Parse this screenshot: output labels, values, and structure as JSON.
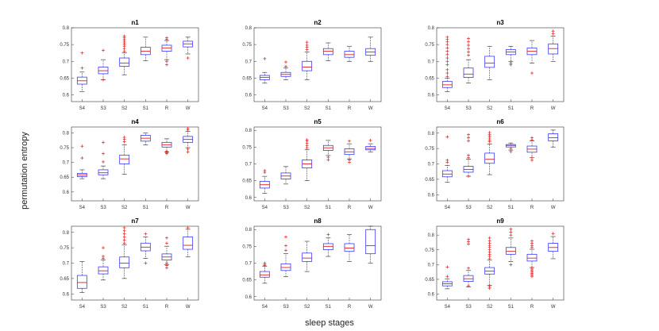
{
  "figure": {
    "ylabel": "permutation entropy",
    "xlabel": "sleep stages"
  },
  "chart_data": {
    "type": "boxplot",
    "categories": [
      "S4",
      "S3",
      "S2",
      "S1",
      "R",
      "W"
    ],
    "yticks": [
      0.6,
      0.65,
      0.7,
      0.75,
      0.8
    ],
    "colors": {
      "box": "#3a3aff",
      "median": "#e02020",
      "outlier": "#e02020",
      "whisker": "#222222"
    },
    "panels": [
      {
        "title": "n1",
        "ylim": [
          0.58,
          0.8
        ],
        "boxes": [
          {
            "wlo": 0.61,
            "q1": 0.632,
            "med": 0.642,
            "q3": 0.653,
            "whi": 0.668,
            "outliers": [
              0.68,
              0.725
            ]
          },
          {
            "wlo": 0.645,
            "q1": 0.663,
            "med": 0.672,
            "q3": 0.683,
            "whi": 0.705,
            "outliers": [
              0.645,
              0.733
            ]
          },
          {
            "wlo": 0.66,
            "q1": 0.685,
            "med": 0.695,
            "q3": 0.71,
            "whi": 0.725,
            "outliers": [
              0.73,
              0.738,
              0.745,
              0.75,
              0.755,
              0.76,
              0.765,
              0.77,
              0.775
            ]
          },
          {
            "wlo": 0.702,
            "q1": 0.72,
            "med": 0.73,
            "q3": 0.742,
            "whi": 0.772,
            "outliers": []
          },
          {
            "wlo": 0.705,
            "q1": 0.73,
            "med": 0.74,
            "q3": 0.748,
            "whi": 0.762,
            "outliers": [
              0.69,
              0.7,
              0.765,
              0.77
            ]
          },
          {
            "wlo": 0.722,
            "q1": 0.743,
            "med": 0.752,
            "q3": 0.76,
            "whi": 0.772,
            "outliers": [
              0.71
            ]
          }
        ]
      },
      {
        "title": "n2",
        "ylim": [
          0.58,
          0.8
        ],
        "boxes": [
          {
            "wlo": 0.635,
            "q1": 0.645,
            "med": 0.652,
            "q3": 0.658,
            "whi": 0.667,
            "outliers": [
              0.708
            ]
          },
          {
            "wlo": 0.645,
            "q1": 0.655,
            "med": 0.661,
            "q3": 0.667,
            "whi": 0.68,
            "outliers": [
              0.685,
              0.698
            ]
          },
          {
            "wlo": 0.645,
            "q1": 0.672,
            "med": 0.683,
            "q3": 0.7,
            "whi": 0.728,
            "outliers": [
              0.735,
              0.742,
              0.748,
              0.757
            ]
          },
          {
            "wlo": 0.702,
            "q1": 0.72,
            "med": 0.73,
            "q3": 0.738,
            "whi": 0.755,
            "outliers": []
          },
          {
            "wlo": 0.7,
            "q1": 0.712,
            "med": 0.72,
            "q3": 0.73,
            "whi": 0.745,
            "outliers": []
          },
          {
            "wlo": 0.7,
            "q1": 0.718,
            "med": 0.728,
            "q3": 0.738,
            "whi": 0.772,
            "outliers": []
          }
        ]
      },
      {
        "title": "n3",
        "ylim": [
          0.58,
          0.8
        ],
        "boxes": [
          {
            "wlo": 0.61,
            "q1": 0.622,
            "med": 0.63,
            "q3": 0.64,
            "whi": 0.65,
            "outliers": [
              0.655,
              0.665,
              0.675,
              0.69,
              0.7,
              0.71,
              0.72,
              0.73,
              0.74,
              0.75,
              0.758,
              0.765,
              0.772
            ]
          },
          {
            "wlo": 0.635,
            "q1": 0.652,
            "med": 0.662,
            "q3": 0.68,
            "whi": 0.705,
            "outliers": [
              0.718,
              0.728,
              0.738,
              0.748,
              0.758,
              0.768
            ]
          },
          {
            "wlo": 0.645,
            "q1": 0.682,
            "med": 0.695,
            "q3": 0.715,
            "whi": 0.745,
            "outliers": []
          },
          {
            "wlo": 0.7,
            "q1": 0.72,
            "med": 0.728,
            "q3": 0.735,
            "whi": 0.745,
            "outliers": [
              0.69,
              0.695,
              0.7
            ]
          },
          {
            "wlo": 0.695,
            "q1": 0.72,
            "med": 0.73,
            "q3": 0.74,
            "whi": 0.762,
            "outliers": [
              0.665
            ]
          },
          {
            "wlo": 0.7,
            "q1": 0.722,
            "med": 0.738,
            "q3": 0.752,
            "whi": 0.775,
            "outliers": [
              0.782,
              0.79
            ]
          }
        ]
      },
      {
        "title": "n4",
        "ylim": [
          0.57,
          0.82
        ],
        "boxes": [
          {
            "wlo": 0.645,
            "q1": 0.652,
            "med": 0.658,
            "q3": 0.663,
            "whi": 0.675,
            "outliers": [
              0.715,
              0.755
            ]
          },
          {
            "wlo": 0.645,
            "q1": 0.658,
            "med": 0.665,
            "q3": 0.675,
            "whi": 0.688,
            "outliers": [
              0.702,
              0.73,
              0.768
            ]
          },
          {
            "wlo": 0.66,
            "q1": 0.695,
            "med": 0.712,
            "q3": 0.725,
            "whi": 0.76,
            "outliers": [
              0.77,
              0.778,
              0.785
            ]
          },
          {
            "wlo": 0.76,
            "q1": 0.772,
            "med": 0.782,
            "q3": 0.792,
            "whi": 0.8,
            "outliers": []
          },
          {
            "wlo": 0.735,
            "q1": 0.752,
            "med": 0.76,
            "q3": 0.768,
            "whi": 0.78,
            "outliers": [
              0.73,
              0.732,
              0.735,
              0.738
            ]
          },
          {
            "wlo": 0.75,
            "q1": 0.768,
            "med": 0.778,
            "q3": 0.788,
            "whi": 0.805,
            "outliers": [
              0.735,
              0.745,
              0.81,
              0.815
            ]
          }
        ]
      },
      {
        "title": "n5",
        "ylim": [
          0.59,
          0.81
        ],
        "boxes": [
          {
            "wlo": 0.612,
            "q1": 0.628,
            "med": 0.638,
            "q3": 0.648,
            "whi": 0.663,
            "outliers": [
              0.675,
              0.68
            ]
          },
          {
            "wlo": 0.64,
            "q1": 0.655,
            "med": 0.664,
            "q3": 0.673,
            "whi": 0.692,
            "outliers": []
          },
          {
            "wlo": 0.65,
            "q1": 0.688,
            "med": 0.7,
            "q3": 0.712,
            "whi": 0.742,
            "outliers": [
              0.748,
              0.755,
              0.762,
              0.768,
              0.772
            ]
          },
          {
            "wlo": 0.725,
            "q1": 0.74,
            "med": 0.748,
            "q3": 0.755,
            "whi": 0.77,
            "outliers": [
              0.712,
              0.72
            ]
          },
          {
            "wlo": 0.715,
            "q1": 0.728,
            "med": 0.736,
            "q3": 0.745,
            "whi": 0.76,
            "outliers": [
              0.705,
              0.712,
              0.768
            ]
          },
          {
            "wlo": 0.735,
            "q1": 0.742,
            "med": 0.746,
            "q3": 0.752,
            "whi": 0.76,
            "outliers": [
              0.77
            ]
          }
        ]
      },
      {
        "title": "n6",
        "ylim": [
          0.58,
          0.82
        ],
        "boxes": [
          {
            "wlo": 0.64,
            "q1": 0.658,
            "med": 0.667,
            "q3": 0.678,
            "whi": 0.695,
            "outliers": [
              0.705,
              0.712,
              0.788
            ]
          },
          {
            "wlo": 0.66,
            "q1": 0.673,
            "med": 0.682,
            "q3": 0.692,
            "whi": 0.715,
            "outliers": [
              0.66,
              0.72,
              0.728,
              0.775,
              0.785,
              0.795
            ]
          },
          {
            "wlo": 0.665,
            "q1": 0.702,
            "med": 0.715,
            "q3": 0.735,
            "whi": 0.765,
            "outliers": [
              0.772,
              0.778,
              0.784,
              0.79,
              0.796,
              0.802
            ]
          },
          {
            "wlo": 0.745,
            "q1": 0.755,
            "med": 0.76,
            "q3": 0.763,
            "whi": 0.768,
            "outliers": [
              0.74,
              0.75
            ]
          },
          {
            "wlo": 0.72,
            "q1": 0.738,
            "med": 0.748,
            "q3": 0.758,
            "whi": 0.775,
            "outliers": [
              0.712,
              0.72,
              0.778,
              0.785
            ]
          },
          {
            "wlo": 0.755,
            "q1": 0.775,
            "med": 0.785,
            "q3": 0.798,
            "whi": 0.81,
            "outliers": []
          }
        ]
      },
      {
        "title": "n7",
        "ylim": [
          0.58,
          0.82
        ],
        "boxes": [
          {
            "wlo": 0.605,
            "q1": 0.618,
            "med": 0.637,
            "q3": 0.66,
            "whi": 0.705,
            "outliers": []
          },
          {
            "wlo": 0.645,
            "q1": 0.665,
            "med": 0.675,
            "q3": 0.688,
            "whi": 0.71,
            "outliers": [
              0.715,
              0.722,
              0.75
            ]
          },
          {
            "wlo": 0.65,
            "q1": 0.685,
            "med": 0.7,
            "q3": 0.72,
            "whi": 0.76,
            "outliers": [
              0.765,
              0.775,
              0.785,
              0.795,
              0.805,
              0.815
            ]
          },
          {
            "wlo": 0.715,
            "q1": 0.74,
            "med": 0.752,
            "q3": 0.765,
            "whi": 0.785,
            "outliers": [
              0.7,
              0.795
            ]
          },
          {
            "wlo": 0.695,
            "q1": 0.71,
            "med": 0.72,
            "q3": 0.73,
            "whi": 0.755,
            "outliers": [
              0.685,
              0.692,
              0.7,
              0.765,
              0.782
            ]
          },
          {
            "wlo": 0.72,
            "q1": 0.745,
            "med": 0.758,
            "q3": 0.785,
            "whi": 0.81,
            "outliers": [
              0.815
            ]
          }
        ]
      },
      {
        "title": "n8",
        "ylim": [
          0.59,
          0.81
        ],
        "boxes": [
          {
            "wlo": 0.64,
            "q1": 0.658,
            "med": 0.665,
            "q3": 0.675,
            "whi": 0.69,
            "outliers": [
              0.693,
              0.696,
              0.7
            ]
          },
          {
            "wlo": 0.66,
            "q1": 0.678,
            "med": 0.687,
            "q3": 0.698,
            "whi": 0.728,
            "outliers": [
              0.738,
              0.752,
              0.778
            ]
          },
          {
            "wlo": 0.675,
            "q1": 0.705,
            "med": 0.715,
            "q3": 0.73,
            "whi": 0.765,
            "outliers": []
          },
          {
            "wlo": 0.72,
            "q1": 0.74,
            "med": 0.75,
            "q3": 0.758,
            "whi": 0.775,
            "outliers": [
              0.785
            ]
          },
          {
            "wlo": 0.705,
            "q1": 0.735,
            "med": 0.745,
            "q3": 0.758,
            "whi": 0.785,
            "outliers": []
          },
          {
            "wlo": 0.7,
            "q1": 0.728,
            "med": 0.752,
            "q3": 0.8,
            "whi": 0.81,
            "outliers": []
          }
        ]
      },
      {
        "title": "n9",
        "ylim": [
          0.58,
          0.83
        ],
        "boxes": [
          {
            "wlo": 0.618,
            "q1": 0.628,
            "med": 0.635,
            "q3": 0.642,
            "whi": 0.652,
            "outliers": [
              0.66,
              0.692
            ]
          },
          {
            "wlo": 0.625,
            "q1": 0.643,
            "med": 0.652,
            "q3": 0.663,
            "whi": 0.68,
            "outliers": [
              0.628,
              0.688,
              0.77,
              0.778,
              0.785
            ]
          },
          {
            "wlo": 0.63,
            "q1": 0.668,
            "med": 0.678,
            "q3": 0.69,
            "whi": 0.715,
            "outliers": [
              0.62,
              0.625,
              0.63,
              0.72,
              0.728,
              0.735,
              0.742,
              0.75,
              0.758,
              0.765,
              0.772,
              0.78,
              0.79
            ]
          },
          {
            "wlo": 0.71,
            "q1": 0.735,
            "med": 0.745,
            "q3": 0.758,
            "whi": 0.79,
            "outliers": [
              0.7,
              0.8,
              0.81,
              0.82
            ]
          },
          {
            "wlo": 0.69,
            "q1": 0.712,
            "med": 0.722,
            "q3": 0.735,
            "whi": 0.752,
            "outliers": [
              0.66,
              0.665,
              0.67,
              0.675,
              0.68,
              0.685,
              0.69,
              0.758,
              0.765,
              0.772,
              0.78
            ]
          },
          {
            "wlo": 0.72,
            "q1": 0.745,
            "med": 0.758,
            "q3": 0.772,
            "whi": 0.795,
            "outliers": [
              0.805
            ]
          }
        ]
      }
    ]
  }
}
